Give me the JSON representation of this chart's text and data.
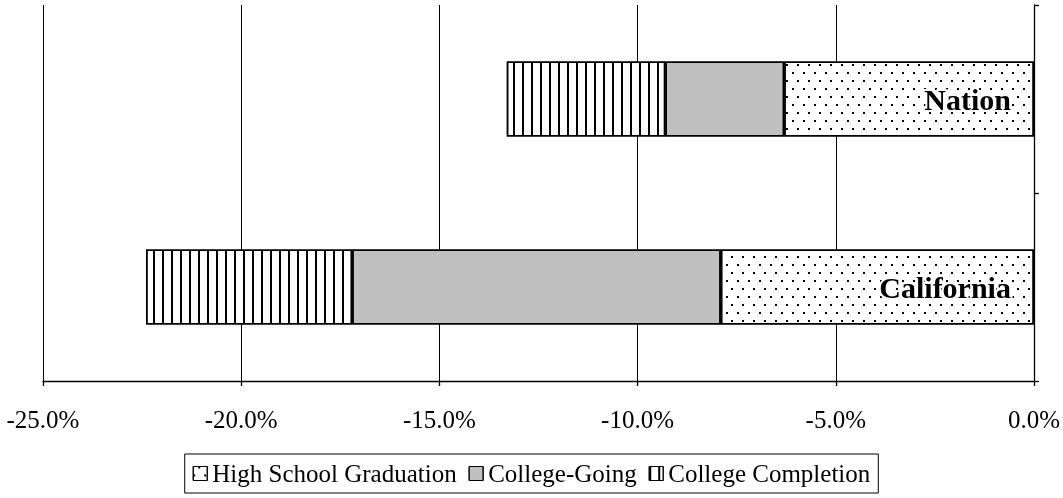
{
  "chart_data": {
    "type": "bar",
    "orientation": "horizontal",
    "stacked": true,
    "categories": [
      "Nation",
      "California"
    ],
    "series": [
      {
        "name": "High School Graduation",
        "color": "#ffffff",
        "values": [
          -6.3,
          -7.9
        ]
      },
      {
        "name": "College-Going",
        "color": "#c0c0c0",
        "values": [
          -3.0,
          -9.3
        ]
      },
      {
        "name": "College Completion",
        "color": "#ffffff",
        "values": [
          -4.0,
          -5.2
        ]
      }
    ],
    "xlim": [
      -25,
      0
    ],
    "xticks": [
      {
        "value": -25,
        "label": "-25.0%"
      },
      {
        "value": -20,
        "label": "-20.0%"
      },
      {
        "value": -15,
        "label": "-15.0%"
      },
      {
        "value": -10,
        "label": "-10.0%"
      },
      {
        "value": -5,
        "label": "-5.0%"
      },
      {
        "value": 0,
        "label": "0.0%"
      }
    ],
    "grid": "x",
    "legend": "bottom"
  }
}
